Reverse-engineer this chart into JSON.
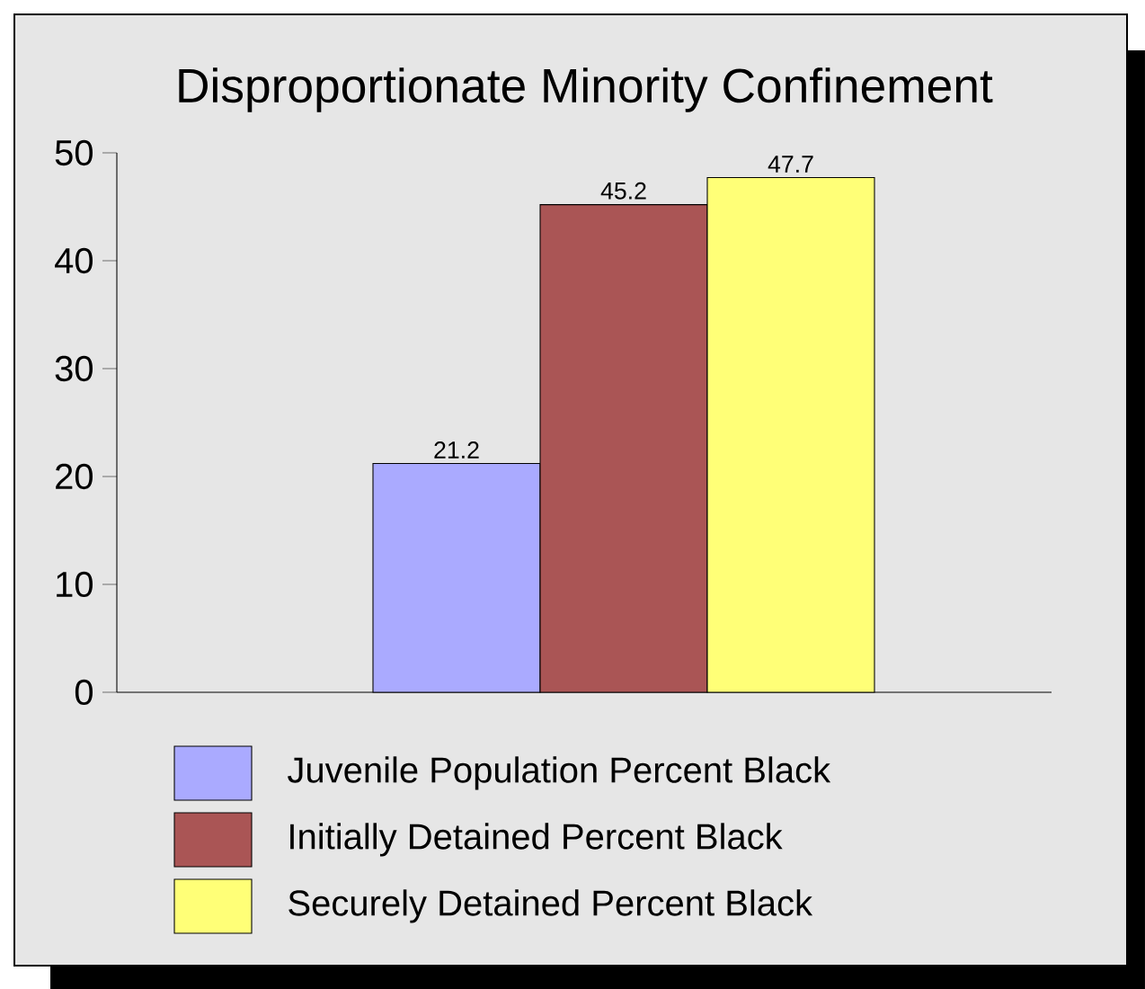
{
  "chart_data": {
    "type": "bar",
    "title": "Disproportionate Minority Confinement",
    "categories": [
      null
    ],
    "series": [
      {
        "name": "Juvenile Population Percent Black",
        "color": "#aaaaff",
        "values": [
          21.2
        ]
      },
      {
        "name": "Initially Detained Percent Black",
        "color": "#aa5555",
        "values": [
          45.2
        ]
      },
      {
        "name": "Securely Detained Percent Black",
        "color": "#ffff77",
        "values": [
          47.7
        ]
      }
    ],
    "ylim": [
      0,
      50
    ],
    "yticks": [
      0,
      10,
      20,
      30,
      40,
      50
    ],
    "data_labels": true,
    "legend": "bottom",
    "grid": false
  }
}
